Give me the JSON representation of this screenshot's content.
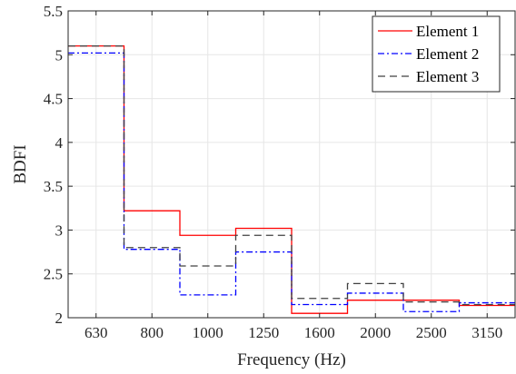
{
  "chart_data": {
    "type": "line",
    "step": true,
    "categories": [
      "630",
      "800",
      "1000",
      "1250",
      "1600",
      "2000",
      "2500",
      "3150"
    ],
    "xlabel": "Frequency (Hz)",
    "ylabel": "BDFI",
    "ylim": [
      2,
      5.5
    ],
    "yticks": [
      2,
      2.5,
      3,
      3.5,
      4,
      4.5,
      5,
      5.5
    ],
    "ytick_labels": [
      "2",
      "2.5",
      "3",
      "3.5",
      "4",
      "4.5",
      "5",
      "5.5"
    ],
    "grid": true,
    "legend_position": "top-right",
    "series": [
      {
        "name": "Element 1",
        "color": "#ff0000",
        "dash": "solid",
        "values": [
          5.1,
          3.22,
          2.94,
          3.02,
          2.05,
          2.2,
          2.2,
          2.14
        ]
      },
      {
        "name": "Element 2",
        "color": "#0000ff",
        "dash": "dashdot",
        "values": [
          5.02,
          2.78,
          2.26,
          2.75,
          2.15,
          2.28,
          2.07,
          2.17
        ]
      },
      {
        "name": "Element 3",
        "color": "#404040",
        "dash": "dashed",
        "values": [
          5.1,
          2.8,
          2.59,
          2.94,
          2.22,
          2.39,
          2.18,
          2.15
        ]
      }
    ]
  }
}
